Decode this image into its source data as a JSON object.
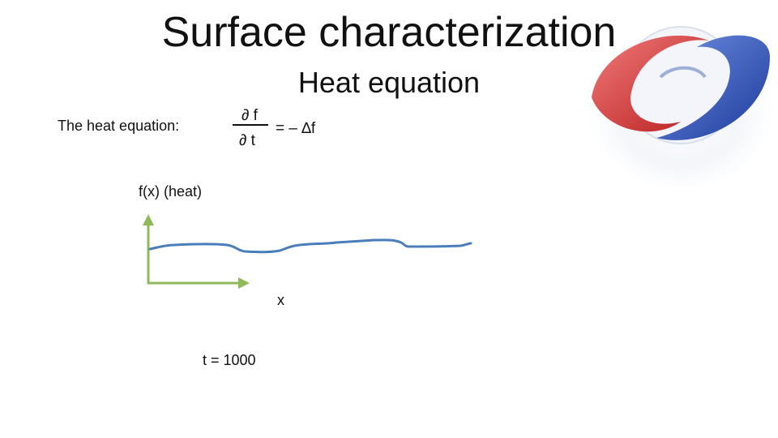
{
  "slide": {
    "title": "Surface characterization",
    "subtitle": "Heat equation"
  },
  "equation": {
    "label": "The heat equation:",
    "numerator": "∂ f",
    "denominator": "∂ t",
    "rhs": "= – ∆f"
  },
  "plot": {
    "y_label": "f(x)  (heat)",
    "x_label": "x",
    "time_label": "t = 1000",
    "curve_color": "#4a7ebb",
    "axis_color": "#8fb85a"
  },
  "logo": {
    "icon": "swirl-sphere-logo-icon",
    "colors": [
      "#d93a3a",
      "#2b4fb8",
      "#c8d4e8"
    ]
  }
}
